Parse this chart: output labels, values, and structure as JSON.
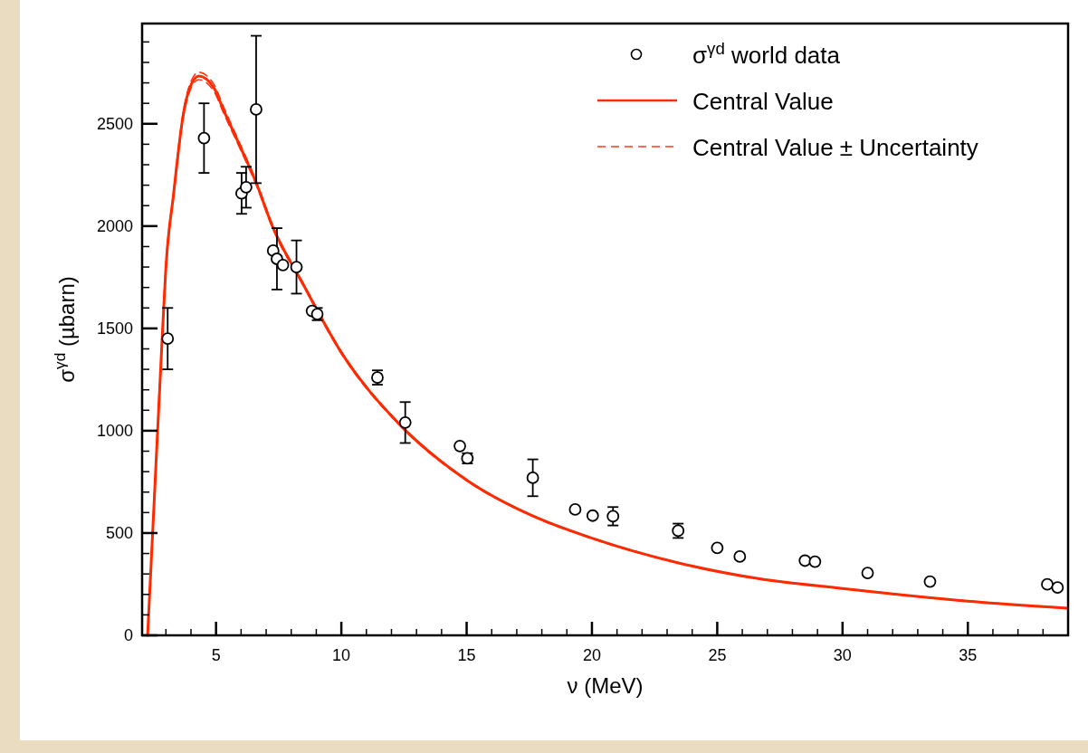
{
  "chart_data": {
    "type": "scatter",
    "xlabel": "ν (MeV)",
    "ylabel": "σ$^{γd}$ (µbarn)",
    "xlim": [
      2.05,
      39
    ],
    "ylim": [
      0,
      2990
    ],
    "xticks": [
      {
        "value": 3,
        "label": null
      },
      {
        "value": 4,
        "label": null
      },
      5,
      {
        "value": 6,
        "label": null
      },
      {
        "value": 7,
        "label": null
      },
      {
        "value": 8,
        "label": null
      },
      {
        "value": 9,
        "label": null
      },
      10,
      {
        "value": 11,
        "label": null
      },
      {
        "value": 12,
        "label": null
      },
      {
        "value": 13,
        "label": null
      },
      {
        "value": 14,
        "label": null
      },
      15,
      {
        "value": 16,
        "label": null
      },
      {
        "value": 17,
        "label": null
      },
      {
        "value": 18,
        "label": null
      },
      {
        "value": 19,
        "label": null
      },
      20,
      {
        "value": 21,
        "label": null
      },
      {
        "value": 22,
        "label": null
      },
      {
        "value": 23,
        "label": null
      },
      {
        "value": 24,
        "label": null
      },
      25,
      {
        "value": 26,
        "label": null
      },
      {
        "value": 27,
        "label": null
      },
      {
        "value": 28,
        "label": null
      },
      {
        "value": 29,
        "label": null
      },
      30,
      {
        "value": 31,
        "label": null
      },
      {
        "value": 32,
        "label": null
      },
      {
        "value": 33,
        "label": null
      },
      {
        "value": 34,
        "label": null
      },
      35,
      {
        "value": 36,
        "label": null
      },
      {
        "value": 37,
        "label": null
      },
      {
        "value": 38,
        "label": null
      }
    ],
    "yticks": [
      0,
      {
        "value": 100,
        "label": null
      },
      {
        "value": 200,
        "label": null
      },
      {
        "value": 300,
        "label": null
      },
      {
        "value": 400,
        "label": null
      },
      500,
      {
        "value": 600,
        "label": null
      },
      {
        "value": 700,
        "label": null
      },
      {
        "value": 800,
        "label": null
      },
      {
        "value": 900,
        "label": null
      },
      1000,
      {
        "value": 1100,
        "label": null
      },
      {
        "value": 1200,
        "label": null
      },
      {
        "value": 1300,
        "label": null
      },
      {
        "value": 1400,
        "label": null
      },
      1500,
      {
        "value": 1600,
        "label": null
      },
      {
        "value": 1700,
        "label": null
      },
      {
        "value": 1800,
        "label": null
      },
      {
        "value": 1900,
        "label": null
      },
      2000,
      {
        "value": 2100,
        "label": null
      },
      {
        "value": 2200,
        "label": null
      },
      {
        "value": 2300,
        "label": null
      },
      {
        "value": 2400,
        "label": null
      },
      2500,
      {
        "value": 2600,
        "label": null
      },
      {
        "value": 2700,
        "label": null
      },
      {
        "value": 2800,
        "label": null
      },
      {
        "value": 2900,
        "label": null
      }
    ],
    "grid": false,
    "legend": "top right",
    "series": [
      {
        "name": "Central Value ± Uncertainty",
        "type": "line",
        "line_style": "dashed",
        "color": "#ff3b1f",
        "x": [
          2.27,
          2.47,
          2.87,
          3.0,
          3.3,
          3.7,
          3.95,
          4.31,
          4.92,
          5.28,
          5.94,
          6.58,
          7.26,
          8.47,
          10.1,
          12.26,
          15,
          17.67,
          20,
          23.45,
          26.7,
          30,
          35,
          38.95
        ],
        "values": [
          0,
          505,
          1510,
          1810,
          2162,
          2565,
          2692,
          2752,
          2692,
          2588,
          2407,
          2228,
          2005,
          1723,
          1368,
          1043,
          762,
          584,
          477,
          355,
          277,
          230,
          168,
          134
        ]
      },
      {
        "type": "line",
        "line_style": "dashed",
        "color": "#ff3b1f",
        "x": [
          2.27,
          2.47,
          2.87,
          3.0,
          3.3,
          3.7,
          3.95,
          4.31,
          4.92,
          5.28,
          5.94,
          6.58,
          7.26,
          8.47,
          10.1,
          12.26,
          15,
          17.67,
          20,
          23.45,
          26.7,
          30,
          35,
          38.95
        ],
        "values": [
          0,
          495,
          1490,
          1790,
          2138,
          2535,
          2658,
          2716,
          2658,
          2558,
          2383,
          2208,
          1989,
          1711,
          1358,
          1035,
          756,
          580,
          473,
          353,
          275,
          228,
          166,
          132
        ]
      },
      {
        "name": "Central Value",
        "type": "line",
        "line_style": "solid",
        "color": "#ff2a00",
        "x": [
          2.27,
          2.47,
          2.87,
          3.0,
          3.3,
          3.7,
          3.95,
          4.31,
          4.92,
          5.28,
          5.94,
          6.58,
          7.26,
          8.47,
          10.1,
          12.26,
          15,
          17.67,
          20,
          23.45,
          26.7,
          30,
          35,
          38.95
        ],
        "values": [
          0,
          500,
          1500,
          1800,
          2150,
          2550,
          2675,
          2734,
          2675,
          2573,
          2395,
          2218,
          1997,
          1717,
          1363,
          1039,
          759,
          582,
          475,
          354,
          276,
          229,
          167,
          133
        ]
      },
      {
        "name": "σ$^{γd}$ world data",
        "marker": "circle",
        "color": "#000000",
        "x": [
          3.07,
          4.52,
          6.02,
          6.2,
          6.6,
          7.28,
          7.43,
          7.67,
          8.21,
          8.83,
          9.04,
          11.44,
          12.55,
          14.73,
          15.03,
          17.64,
          19.33,
          20.03,
          20.84,
          23.44,
          25.0,
          25.9,
          28.5,
          28.9,
          31.0,
          33.49,
          38.17,
          38.58
        ],
        "values": [
          1450,
          2430,
          2160,
          2190,
          2570,
          1880,
          1840,
          1810,
          1800,
          1585,
          1570,
          1260,
          1040,
          925,
          865,
          770,
          615,
          585,
          582,
          511,
          427,
          385,
          365,
          360,
          305,
          263,
          249,
          234
        ],
        "errors": [
          150,
          170,
          100,
          100,
          360,
          null,
          150,
          null,
          130,
          null,
          30,
          35,
          100,
          null,
          25,
          90,
          null,
          null,
          45,
          35,
          null,
          null,
          null,
          null,
          null,
          null,
          null,
          null
        ]
      }
    ]
  }
}
